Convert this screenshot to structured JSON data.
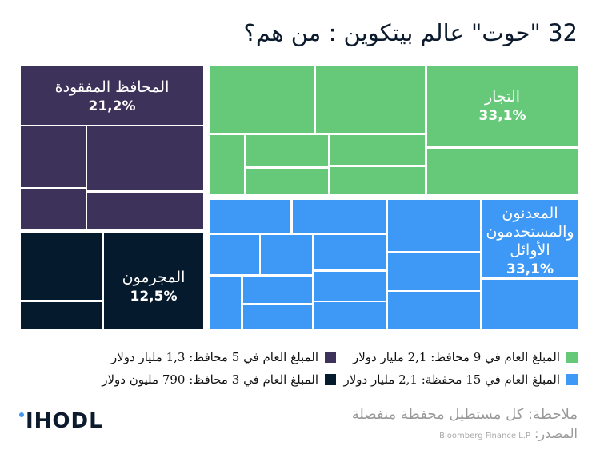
{
  "title": "32 \"حوت\" عالم بيتكوين : من هم؟",
  "chart_data": {
    "type": "treemap",
    "title": "32 \"حوت\" عالم بيتكوين : من هم؟",
    "groups": [
      {
        "name": "المحافظ المفقودة",
        "percent_label": "21,2%",
        "percent": 21.2,
        "wallets": 5,
        "color": "#3d3259"
      },
      {
        "name": "المجرمون",
        "percent_label": "12,5%",
        "percent": 12.5,
        "wallets": 3,
        "color": "#061a2e"
      },
      {
        "name": "التجار",
        "percent_label": "33,1%",
        "percent": 33.1,
        "wallets": 9,
        "color": "#66c97a"
      },
      {
        "name": "المعدنون والمستخدمون الأوائل",
        "percent_label": "33,1%",
        "percent": 33.1,
        "wallets": 15,
        "color": "#3d99f5"
      }
    ]
  },
  "legend": [
    {
      "text": "المبلغ العام في 9 محافظ: 2,1 مليار دولار",
      "color": "#66c97a"
    },
    {
      "text": "المبلغ العام في 5 محافظ: 1,3 مليار دولار",
      "color": "#3d3259"
    },
    {
      "text": "المبلغ العام في 15 محفظة: 2,1 مليار دولار",
      "color": "#3d99f5"
    },
    {
      "text": "المبلغ العام في 3 محافظ: 790 مليون دولار",
      "color": "#061a2e"
    }
  ],
  "note": "ملاحظة: كل مستطيل محفظة منفصلة",
  "source_label": "المصدر:",
  "source_value": "Bloomberg Finance L.P.",
  "logo": "IHODL"
}
